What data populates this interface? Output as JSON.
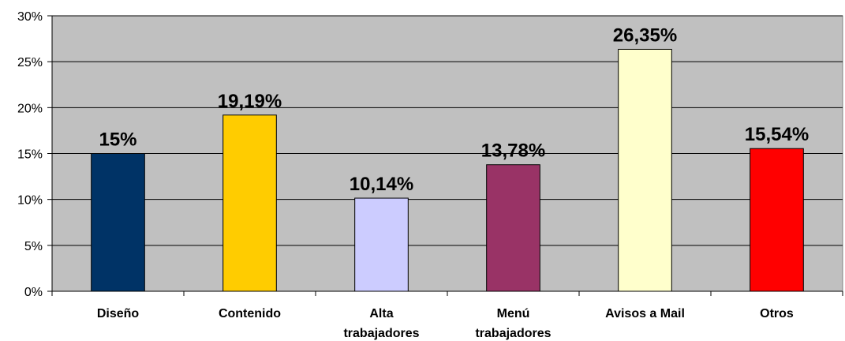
{
  "chart_data": {
    "type": "bar",
    "categories": [
      [
        "Diseño"
      ],
      [
        "Contenido"
      ],
      [
        "Alta",
        "trabajadores"
      ],
      [
        "Menú",
        "trabajadores"
      ],
      [
        "Avisos a Mail"
      ],
      [
        "Otros"
      ]
    ],
    "values": [
      15,
      19.19,
      10.14,
      13.78,
      26.35,
      15.54
    ],
    "data_labels": [
      "15%",
      "19,19%",
      "10,14%",
      "13,78%",
      "26,35%",
      "15,54%"
    ],
    "bar_colors": [
      "#003366",
      "#FFCC00",
      "#CCCCFF",
      "#993366",
      "#FFFFCC",
      "#FF0000"
    ],
    "ylim": [
      0,
      30
    ],
    "y_ticks": [
      0,
      5,
      10,
      15,
      20,
      25,
      30
    ],
    "y_tick_labels": [
      "0%",
      "5%",
      "10%",
      "15%",
      "20%",
      "25%",
      "30%"
    ],
    "title": "",
    "xlabel": "",
    "ylabel": "",
    "grid": true,
    "legend": false,
    "plot_background": "#C0C0C0"
  }
}
